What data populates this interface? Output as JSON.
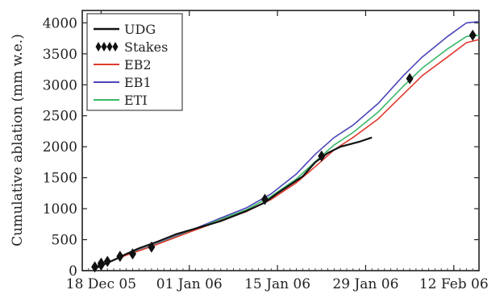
{
  "chart_data": {
    "type": "line",
    "ylabel": "Cumulative ablation (mm w.e.)",
    "xlabel": "",
    "x_unit": "date",
    "xlim": [
      "2005-12-15",
      "2006-02-16"
    ],
    "ylim": [
      0,
      4200
    ],
    "x_ticks": [
      {
        "date": "2005-12-18",
        "label": "18 Dec 05"
      },
      {
        "date": "2006-01-01",
        "label": "01 Jan 06"
      },
      {
        "date": "2006-01-15",
        "label": "15 Jan 06"
      },
      {
        "date": "2006-01-29",
        "label": "29 Jan 06"
      },
      {
        "date": "2006-02-12",
        "label": "12 Feb 06"
      }
    ],
    "y_ticks": [
      0,
      500,
      1000,
      1500,
      2000,
      2500,
      3000,
      3500,
      4000
    ],
    "grid": false,
    "legend_position": "top-left",
    "series": [
      {
        "name": "UDG",
        "color": "#111111",
        "marker": "line",
        "points": [
          [
            "2005-12-17",
            30
          ],
          [
            "2005-12-18",
            80
          ],
          [
            "2005-12-20",
            170
          ],
          [
            "2005-12-22",
            270
          ],
          [
            "2005-12-24",
            360
          ],
          [
            "2005-12-27",
            470
          ],
          [
            "2005-12-30",
            590
          ],
          [
            "2006-01-02",
            680
          ],
          [
            "2006-01-06",
            800
          ],
          [
            "2006-01-10",
            960
          ],
          [
            "2006-01-13",
            1100
          ],
          [
            "2006-01-15",
            1250
          ],
          [
            "2006-01-19",
            1520
          ],
          [
            "2006-01-21",
            1750
          ],
          [
            "2006-01-23",
            1900
          ],
          [
            "2006-01-25",
            2000
          ],
          [
            "2006-01-28",
            2080
          ],
          [
            "2006-01-30",
            2150
          ]
        ]
      },
      {
        "name": "Stakes",
        "color": "#111111",
        "marker": "diamond",
        "points": [
          [
            "2005-12-17",
            60
          ],
          [
            "2005-12-18",
            90
          ],
          [
            "2005-12-18",
            120
          ],
          [
            "2005-12-19",
            150
          ],
          [
            "2005-12-21",
            230
          ],
          [
            "2005-12-23",
            270
          ],
          [
            "2005-12-26",
            380
          ],
          [
            "2006-01-13",
            1150
          ],
          [
            "2006-01-22",
            1850
          ],
          [
            "2006-02-05",
            3100
          ],
          [
            "2006-02-15",
            3800
          ]
        ]
      },
      {
        "name": "EB2",
        "color": "#e03a2f",
        "marker": "line",
        "points": [
          [
            "2005-12-17",
            40
          ],
          [
            "2005-12-19",
            130
          ],
          [
            "2005-12-22",
            250
          ],
          [
            "2005-12-26",
            390
          ],
          [
            "2006-01-01",
            620
          ],
          [
            "2006-01-06",
            810
          ],
          [
            "2006-01-10",
            950
          ],
          [
            "2006-01-14",
            1150
          ],
          [
            "2006-01-18",
            1420
          ],
          [
            "2006-01-21",
            1680
          ],
          [
            "2006-01-24",
            1950
          ],
          [
            "2006-01-27",
            2150
          ],
          [
            "2006-01-31",
            2450
          ],
          [
            "2006-02-04",
            2850
          ],
          [
            "2006-02-07",
            3150
          ],
          [
            "2006-02-11",
            3450
          ],
          [
            "2006-02-14",
            3680
          ],
          [
            "2006-02-16",
            3730
          ]
        ]
      },
      {
        "name": "EB1",
        "color": "#4b46b8",
        "marker": "line",
        "points": [
          [
            "2005-12-17",
            40
          ],
          [
            "2005-12-19",
            130
          ],
          [
            "2005-12-22",
            260
          ],
          [
            "2005-12-26",
            400
          ],
          [
            "2006-01-01",
            640
          ],
          [
            "2006-01-06",
            850
          ],
          [
            "2006-01-10",
            1010
          ],
          [
            "2006-01-14",
            1240
          ],
          [
            "2006-01-18",
            1560
          ],
          [
            "2006-01-21",
            1880
          ],
          [
            "2006-01-24",
            2150
          ],
          [
            "2006-01-27",
            2350
          ],
          [
            "2006-01-31",
            2700
          ],
          [
            "2006-02-04",
            3150
          ],
          [
            "2006-02-07",
            3450
          ],
          [
            "2006-02-11",
            3780
          ],
          [
            "2006-02-14",
            4000
          ],
          [
            "2006-02-16",
            4020
          ]
        ]
      },
      {
        "name": "ETI",
        "color": "#3cb86a",
        "marker": "line",
        "points": [
          [
            "2005-12-17",
            40
          ],
          [
            "2005-12-19",
            130
          ],
          [
            "2005-12-22",
            255
          ],
          [
            "2005-12-26",
            395
          ],
          [
            "2006-01-01",
            630
          ],
          [
            "2006-01-06",
            830
          ],
          [
            "2006-01-10",
            980
          ],
          [
            "2006-01-14",
            1200
          ],
          [
            "2006-01-18",
            1480
          ],
          [
            "2006-01-21",
            1760
          ],
          [
            "2006-01-24",
            2030
          ],
          [
            "2006-01-27",
            2230
          ],
          [
            "2006-01-31",
            2560
          ],
          [
            "2006-02-04",
            2980
          ],
          [
            "2006-02-07",
            3270
          ],
          [
            "2006-02-11",
            3580
          ],
          [
            "2006-02-14",
            3780
          ],
          [
            "2006-02-16",
            3800
          ]
        ]
      }
    ]
  }
}
